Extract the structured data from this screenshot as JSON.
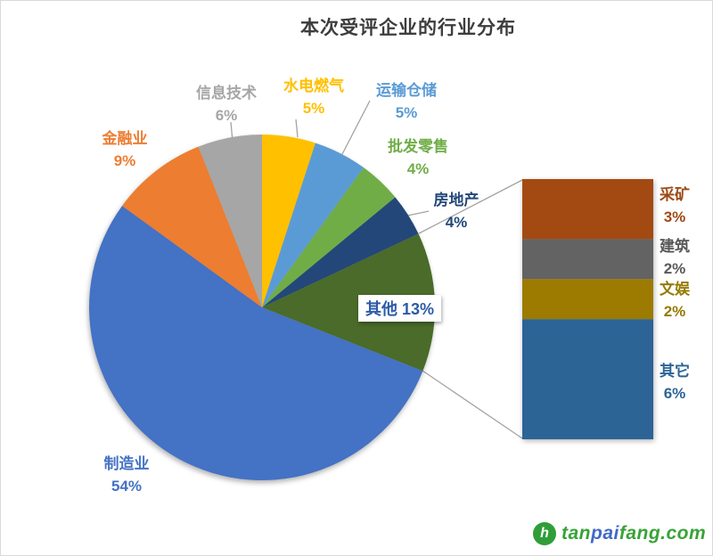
{
  "chart_data": {
    "type": "pie",
    "subtype": "bar-of-pie",
    "title": "本次受评企业的行业分布",
    "legend": "none (labels placed around slices)",
    "line_color": "#a3a3a3",
    "pie_series": [
      {
        "name": "水电燃气",
        "value": 5,
        "pct": "5%",
        "color": "#FFC000"
      },
      {
        "name": "运输仓储",
        "value": 5,
        "pct": "5%",
        "color": "#5B9BD5"
      },
      {
        "name": "批发零售",
        "value": 4,
        "pct": "4%",
        "color": "#70AD47"
      },
      {
        "name": "房地产",
        "value": 4,
        "pct": "4%",
        "color": "#234779"
      },
      {
        "name": "其他",
        "value": 13,
        "pct": "13%",
        "color": "#4A6B29"
      },
      {
        "name": "制造业",
        "value": 54,
        "pct": "54%",
        "color": "#4472C4"
      },
      {
        "name": "金融业",
        "value": 9,
        "pct": "9%",
        "color": "#ED7D31"
      },
      {
        "name": "信息技术",
        "value": 6,
        "pct": "6%",
        "color": "#A6A6A6"
      }
    ],
    "other_callout": {
      "label": "其他 13%",
      "text_color": "#2B5BA6"
    },
    "bar_series": [
      {
        "name": "采矿",
        "value": 3,
        "pct": "3%",
        "color": "#A34A12",
        "label_color": "#9E4A15"
      },
      {
        "name": "建筑",
        "value": 2,
        "pct": "2%",
        "color": "#636363",
        "label_color": "#595959"
      },
      {
        "name": "文娱",
        "value": 2,
        "pct": "2%",
        "color": "#9C7B00",
        "label_color": "#957A00"
      },
      {
        "name": "其它",
        "value": 6,
        "pct": "6%",
        "color": "#2C6496",
        "label_color": "#2B6496"
      }
    ]
  },
  "watermark": {
    "icon": "tanpaifang-logo",
    "icon_color": "#2f9e38",
    "icon_glyph": "h",
    "parts": [
      {
        "text": "tan",
        "color": "#38A336"
      },
      {
        "text": "pai",
        "color": "#4169C8"
      },
      {
        "text": "fang.com",
        "color": "#38A336"
      }
    ]
  }
}
